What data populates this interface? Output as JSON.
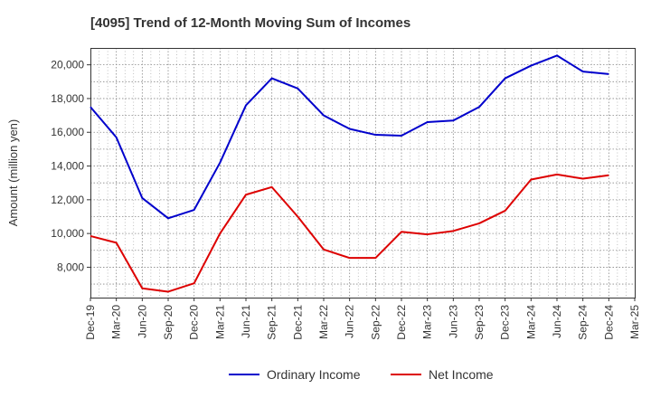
{
  "chart_data": {
    "type": "line",
    "title": "[4095]  Trend of 12-Month Moving Sum of Incomes",
    "ylabel": "Amount (million yen)",
    "xlabel": "",
    "ylim": [
      6200,
      21000
    ],
    "yticks": [
      8000,
      10000,
      12000,
      14000,
      16000,
      18000,
      20000
    ],
    "ytick_labels": [
      "8,000",
      "10,000",
      "12,000",
      "14,000",
      "16,000",
      "18,000",
      "20,000"
    ],
    "categories": [
      "Dec-19",
      "Mar-20",
      "Jun-20",
      "Sep-20",
      "Dec-20",
      "Mar-21",
      "Jun-21",
      "Sep-21",
      "Dec-21",
      "Mar-22",
      "Jun-22",
      "Sep-22",
      "Dec-22",
      "Mar-23",
      "Jun-23",
      "Sep-23",
      "Dec-23",
      "Mar-24",
      "Jun-24",
      "Sep-24",
      "Dec-24",
      "Mar-25"
    ],
    "grid": true,
    "legend_position": "bottom",
    "series": [
      {
        "name": "Ordinary Income",
        "color": "#0000cc",
        "values": [
          17500,
          15700,
          12100,
          10900,
          11400,
          14200,
          17600,
          19200,
          18600,
          17000,
          16200,
          15850,
          15800,
          16600,
          16700,
          17500,
          19200,
          19950,
          20550,
          19600,
          19450,
          null
        ]
      },
      {
        "name": "Net Income",
        "color": "#dd0000",
        "values": [
          9850,
          9450,
          6750,
          6550,
          7050,
          10000,
          12300,
          12750,
          11000,
          9050,
          8550,
          8550,
          10100,
          9950,
          10150,
          10600,
          11350,
          13200,
          13500,
          13250,
          13450,
          null
        ]
      }
    ]
  }
}
